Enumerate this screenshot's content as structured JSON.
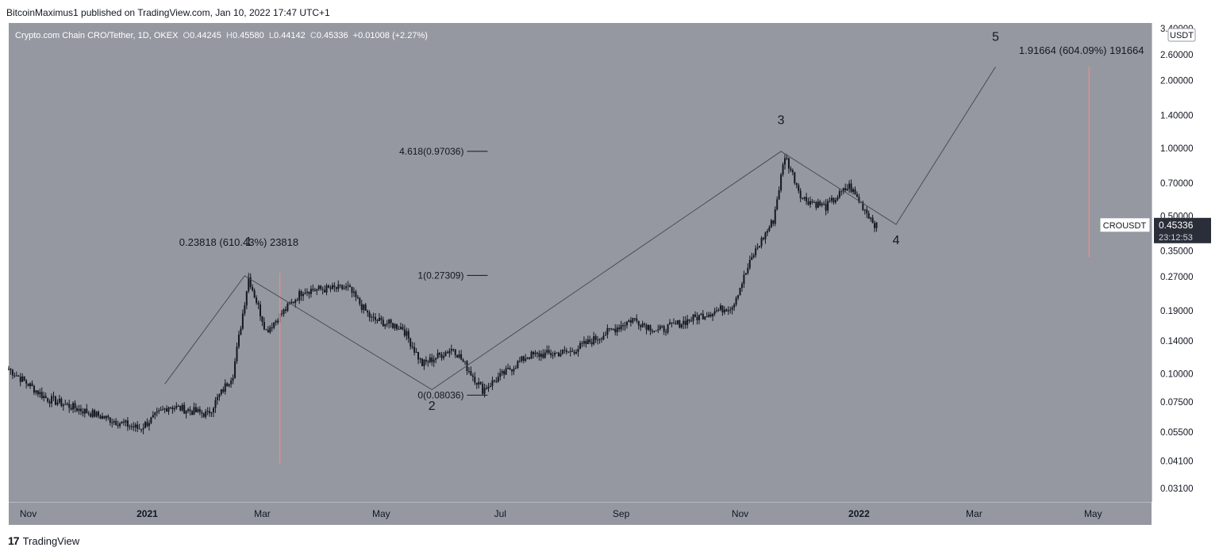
{
  "header": {
    "published": "BitcoinMaximus1 published on TradingView.com, Jan 10, 2022 17:47 UTC+1"
  },
  "legend": {
    "symbol": "Crypto.com Chain CRO/Tether, 1D, OKEX",
    "o_label": "O",
    "o": "0.44245",
    "h_label": "H",
    "h": "0.45580",
    "l_label": "L",
    "l": "0.44142",
    "c_label": "C",
    "c": "0.45336",
    "change": "+0.01008 (+2.27%)"
  },
  "axis": {
    "currency": "USDT"
  },
  "price_label": {
    "symbol": "CROUSDT",
    "price": "0.45336",
    "countdown": "23:12:53"
  },
  "footer": {
    "brand": "TradingView",
    "logo_glyph": "17"
  },
  "colors": {
    "plot_bg": "#9598a1",
    "candle": "#131722",
    "wave_line": "#4a4d55",
    "measure": "#e0908a",
    "price_tag": "#2a2e39"
  },
  "chart_data": {
    "type": "candlestick",
    "title": "Crypto.com Chain CRO/Tether, 1D, OKEX",
    "scale": "log",
    "ylim": [
      0.027,
      3.6
    ],
    "xlim": [
      "2020-10-22",
      "2022-05-31"
    ],
    "yticks": [
      {
        "value": 3.4,
        "label": "3.40000"
      },
      {
        "value": 2.6,
        "label": "2.60000"
      },
      {
        "value": 2.0,
        "label": "2.00000"
      },
      {
        "value": 1.4,
        "label": "1.40000"
      },
      {
        "value": 1.0,
        "label": "1.00000"
      },
      {
        "value": 0.7,
        "label": "0.70000"
      },
      {
        "value": 0.5,
        "label": "0.50000"
      },
      {
        "value": 0.35,
        "label": "0.35000"
      },
      {
        "value": 0.27,
        "label": "0.27000"
      },
      {
        "value": 0.19,
        "label": "0.19000"
      },
      {
        "value": 0.14,
        "label": "0.14000"
      },
      {
        "value": 0.1,
        "label": "0.10000"
      },
      {
        "value": 0.075,
        "label": "0.07500"
      },
      {
        "value": 0.055,
        "label": "0.05500"
      },
      {
        "value": 0.041,
        "label": "0.04100"
      },
      {
        "value": 0.031,
        "label": "0.03100"
      }
    ],
    "xticks": [
      {
        "date": "2020-11-01",
        "label": "Nov",
        "bold": false
      },
      {
        "date": "2021-01-01",
        "label": "2021",
        "bold": true
      },
      {
        "date": "2021-03-01",
        "label": "Mar",
        "bold": false
      },
      {
        "date": "2021-05-01",
        "label": "May",
        "bold": false
      },
      {
        "date": "2021-07-01",
        "label": "Jul",
        "bold": false
      },
      {
        "date": "2021-09-01",
        "label": "Sep",
        "bold": false
      },
      {
        "date": "2021-11-01",
        "label": "Nov",
        "bold": false
      },
      {
        "date": "2022-01-01",
        "label": "2022",
        "bold": true
      },
      {
        "date": "2022-03-01",
        "label": "Mar",
        "bold": false
      },
      {
        "date": "2022-05-01",
        "label": "May",
        "bold": false
      }
    ],
    "price_anchors": [
      [
        "2020-10-22",
        0.105
      ],
      [
        "2020-11-10",
        0.078
      ],
      [
        "2020-12-05",
        0.066
      ],
      [
        "2020-12-28",
        0.057
      ],
      [
        "2021-01-12",
        0.072
      ],
      [
        "2021-02-01",
        0.066
      ],
      [
        "2021-02-14",
        0.1
      ],
      [
        "2021-02-22",
        0.268
      ],
      [
        "2021-03-03",
        0.155
      ],
      [
        "2021-03-22",
        0.235
      ],
      [
        "2021-04-14",
        0.24
      ],
      [
        "2021-04-26",
        0.175
      ],
      [
        "2021-05-12",
        0.16
      ],
      [
        "2021-05-22",
        0.11
      ],
      [
        "2021-06-07",
        0.13
      ],
      [
        "2021-06-22",
        0.085
      ],
      [
        "2021-07-15",
        0.12
      ],
      [
        "2021-08-06",
        0.125
      ],
      [
        "2021-09-07",
        0.175
      ],
      [
        "2021-09-20",
        0.155
      ],
      [
        "2021-10-15",
        0.185
      ],
      [
        "2021-10-28",
        0.2
      ],
      [
        "2021-11-08",
        0.34
      ],
      [
        "2021-11-18",
        0.48
      ],
      [
        "2021-11-24",
        0.93
      ],
      [
        "2021-12-03",
        0.6
      ],
      [
        "2021-12-15",
        0.55
      ],
      [
        "2021-12-27",
        0.68
      ],
      [
        "2022-01-10",
        0.45
      ]
    ],
    "wave_path": [
      [
        "2021-01-10",
        0.09
      ],
      [
        "2021-02-20",
        0.272
      ],
      [
        "2021-05-27",
        0.085
      ],
      [
        "2021-11-22",
        0.97
      ],
      [
        "2022-01-20",
        0.46
      ],
      [
        "2022-03-12",
        2.3
      ]
    ],
    "wave_labels": [
      {
        "label": "1",
        "date": "2021-02-22",
        "value": 0.37
      },
      {
        "label": "2",
        "date": "2021-05-27",
        "value": 0.069
      },
      {
        "label": "3",
        "date": "2021-11-22",
        "value": 1.28
      },
      {
        "label": "4",
        "date": "2022-01-20",
        "value": 0.375
      },
      {
        "label": "5",
        "date": "2022-03-12",
        "value": 3.0
      }
    ],
    "fib_levels": [
      {
        "label": "4.618(0.97036)",
        "value": 0.97036
      },
      {
        "label": "1(0.27309)",
        "value": 0.27309
      },
      {
        "label": "0(0.08036)",
        "value": 0.08036
      }
    ],
    "measurements": [
      {
        "label": "0.23818 (610.43%) 23818",
        "date": "2021-03-10",
        "from": 0.04,
        "to": 0.28,
        "label_value": 0.37
      },
      {
        "label": "1.91664 (604.09%) 191664",
        "date": "2022-04-29",
        "from": 0.33,
        "to": 2.3,
        "label_value": 2.63
      }
    ]
  }
}
